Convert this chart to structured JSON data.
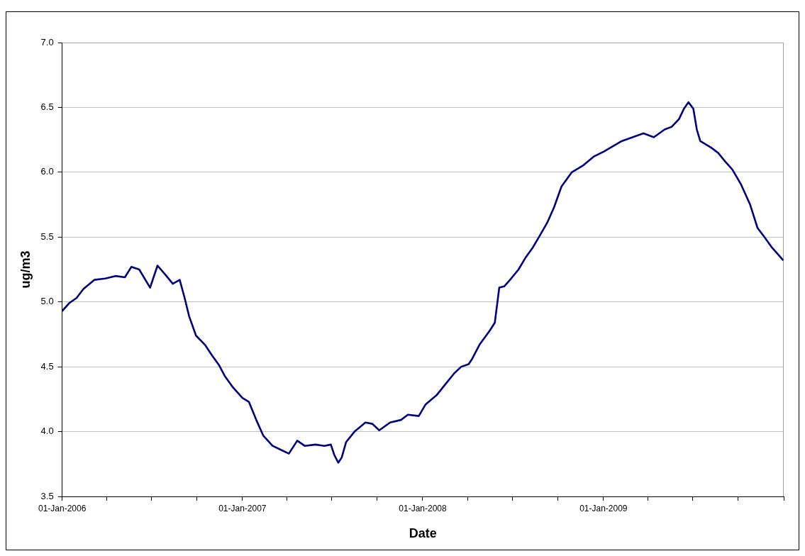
{
  "chart_data": {
    "type": "line",
    "xlabel": "Date",
    "ylabel": "ug/m3",
    "xlim": [
      "2006-01-01",
      "2010-01-01"
    ],
    "ylim": [
      3.5,
      7.0
    ],
    "yticks": [
      {
        "value": 3.5,
        "label": "3.5"
      },
      {
        "value": 4.0,
        "label": "4.0"
      },
      {
        "value": 4.5,
        "label": "4.5"
      },
      {
        "value": 5.0,
        "label": "5.0"
      },
      {
        "value": 5.5,
        "label": "5.5"
      },
      {
        "value": 6.0,
        "label": "6.0"
      },
      {
        "value": 6.5,
        "label": "6.5"
      },
      {
        "value": 7.0,
        "label": "7.0"
      }
    ],
    "xticks": [
      {
        "value": "2006-01-01",
        "label": "01-Jan-2006"
      },
      {
        "value": "2006-04-01",
        "label": null
      },
      {
        "value": "2006-07-01",
        "label": null
      },
      {
        "value": "2006-10-01",
        "label": null
      },
      {
        "value": "2007-01-01",
        "label": "01-Jan-2007"
      },
      {
        "value": "2007-04-01",
        "label": null
      },
      {
        "value": "2007-07-01",
        "label": null
      },
      {
        "value": "2007-10-01",
        "label": null
      },
      {
        "value": "2008-01-01",
        "label": "01-Jan-2008"
      },
      {
        "value": "2008-04-01",
        "label": null
      },
      {
        "value": "2008-07-01",
        "label": null
      },
      {
        "value": "2008-10-01",
        "label": null
      },
      {
        "value": "2009-01-01",
        "label": "01-Jan-2009"
      },
      {
        "value": "2009-04-01",
        "label": null
      },
      {
        "value": "2009-07-01",
        "label": null
      },
      {
        "value": "2009-10-01",
        "label": null
      },
      {
        "value": "2010-01-01",
        "label": null
      }
    ],
    "grid": "y",
    "marker": "none",
    "line_style": "solid",
    "x": [
      "2006-01-01",
      "2006-01-15",
      "2006-01-30",
      "2006-02-13",
      "2006-03-07",
      "2006-03-29",
      "2006-04-19",
      "2006-05-08",
      "2006-05-21",
      "2006-06-06",
      "2006-06-28",
      "2006-07-13",
      "2006-07-29",
      "2006-08-13",
      "2006-08-27",
      "2006-09-06",
      "2006-09-15",
      "2006-09-29",
      "2006-10-17",
      "2006-10-31",
      "2006-11-15",
      "2006-11-26",
      "2006-12-13",
      "2007-01-01",
      "2007-01-14",
      "2007-01-29",
      "2007-02-12",
      "2007-03-03",
      "2007-03-25",
      "2007-04-05",
      "2007-04-22",
      "2007-05-07",
      "2007-05-29",
      "2007-06-16",
      "2007-06-29",
      "2007-07-06",
      "2007-07-14",
      "2007-07-21",
      "2007-07-30",
      "2007-08-16",
      "2007-09-07",
      "2007-09-21",
      "2007-10-05",
      "2007-10-27",
      "2007-11-18",
      "2007-12-02",
      "2007-12-24",
      "2008-01-07",
      "2008-01-29",
      "2008-02-17",
      "2008-03-05",
      "2008-03-19",
      "2008-04-03",
      "2008-04-10",
      "2008-04-25",
      "2008-05-16",
      "2008-05-26",
      "2008-06-04",
      "2008-06-14",
      "2008-06-28",
      "2008-07-13",
      "2008-07-27",
      "2008-08-11",
      "2008-08-25",
      "2008-09-09",
      "2008-09-23",
      "2008-10-08",
      "2008-10-29",
      "2008-11-20",
      "2008-12-12",
      "2009-01-02",
      "2009-02-07",
      "2009-03-01",
      "2009-03-23",
      "2009-04-13",
      "2009-05-05",
      "2009-05-19",
      "2009-06-03",
      "2009-06-13",
      "2009-06-22",
      "2009-07-02",
      "2009-07-09",
      "2009-07-16",
      "2009-08-07",
      "2009-08-21",
      "2009-09-05",
      "2009-09-19",
      "2009-10-06",
      "2009-10-25",
      "2009-11-09",
      "2009-11-23",
      "2009-12-08",
      "2009-12-22",
      "2009-12-31"
    ],
    "series": [
      {
        "color": "#000080",
        "values": [
          4.93,
          4.99,
          5.03,
          5.1,
          5.17,
          5.18,
          5.2,
          5.19,
          5.27,
          5.25,
          5.11,
          5.28,
          5.21,
          5.14,
          5.17,
          5.03,
          4.89,
          4.74,
          4.67,
          4.59,
          4.51,
          4.43,
          4.34,
          4.26,
          4.23,
          4.09,
          3.97,
          3.89,
          3.85,
          3.83,
          3.93,
          3.89,
          3.9,
          3.89,
          3.9,
          3.82,
          3.76,
          3.8,
          3.92,
          4.0,
          4.07,
          4.06,
          4.01,
          4.07,
          4.09,
          4.13,
          4.12,
          4.21,
          4.28,
          4.37,
          4.45,
          4.5,
          4.52,
          4.56,
          4.67,
          4.78,
          4.84,
          5.11,
          5.12,
          5.18,
          5.25,
          5.34,
          5.42,
          5.51,
          5.61,
          5.73,
          5.89,
          6.0,
          6.05,
          6.12,
          6.16,
          6.24,
          6.27,
          6.3,
          6.27,
          6.33,
          6.35,
          6.41,
          6.49,
          6.54,
          6.49,
          6.33,
          6.24,
          6.19,
          6.15,
          6.08,
          6.02,
          5.91,
          5.75,
          5.57,
          5.5,
          5.42,
          5.36,
          5.32
        ]
      }
    ]
  }
}
